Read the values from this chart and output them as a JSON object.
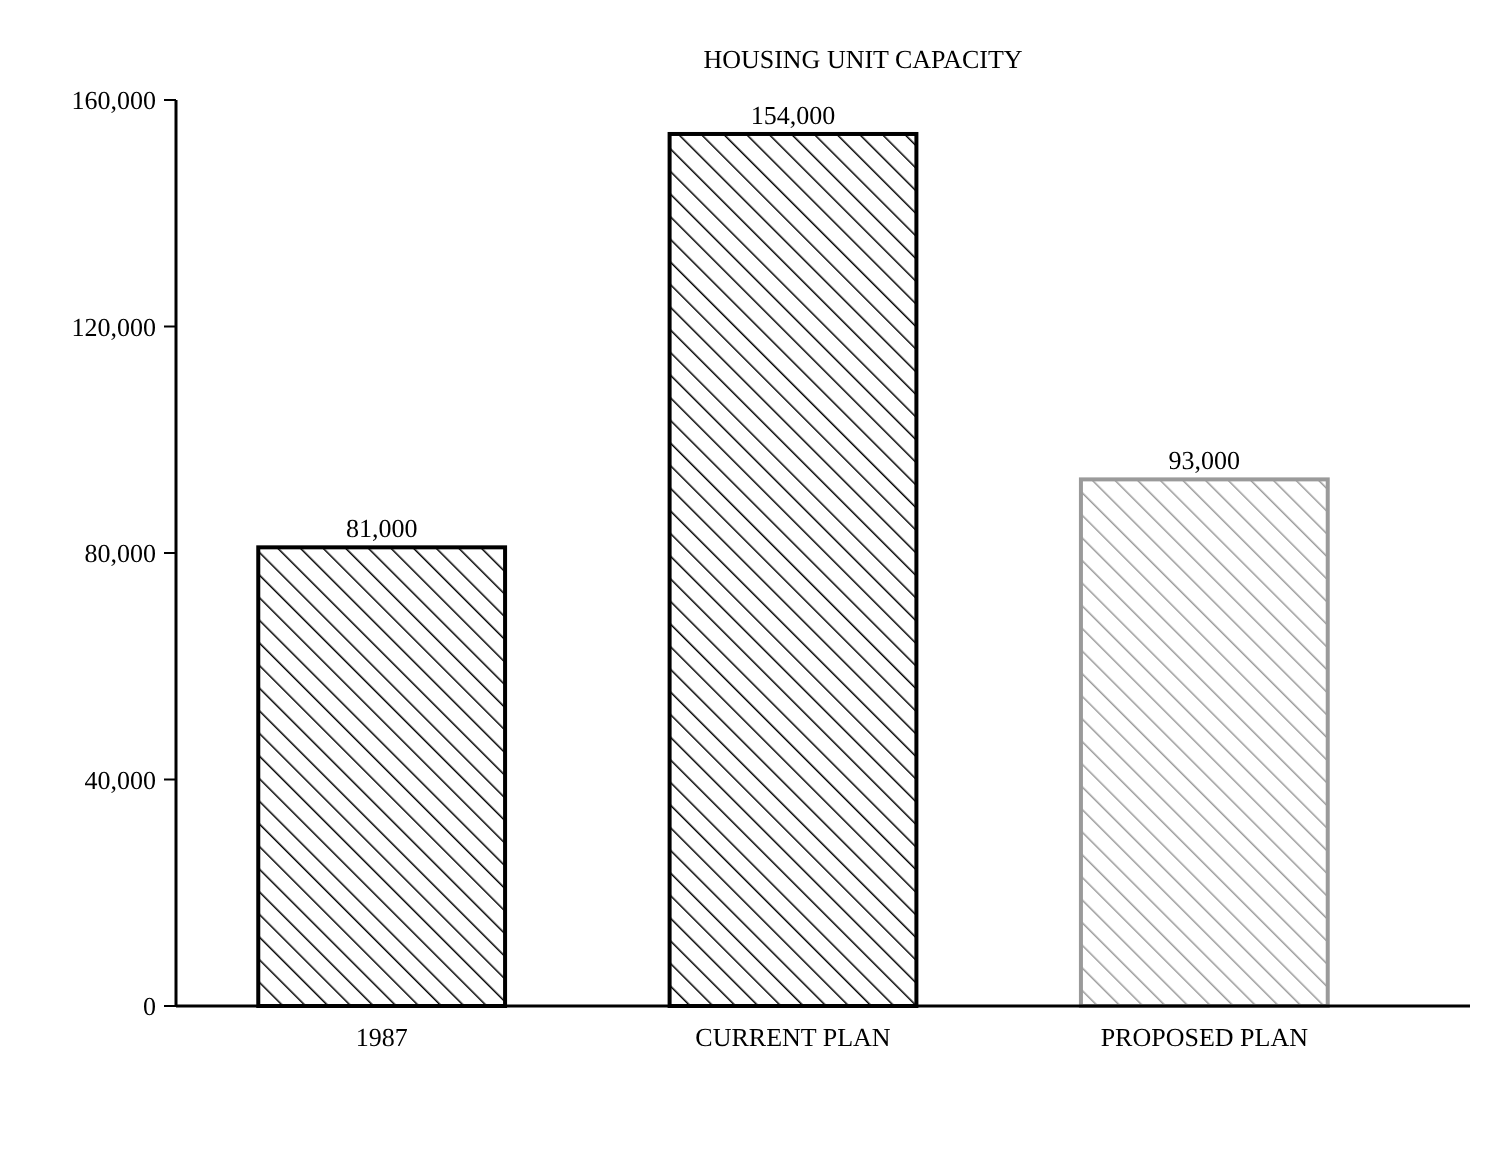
{
  "chart_data": {
    "type": "bar",
    "title": "HOUSING UNIT CAPACITY",
    "categories": [
      "1987",
      "CURRENT PLAN",
      "PROPOSED PLAN"
    ],
    "values": [
      81000,
      154000,
      93000
    ],
    "value_labels": [
      "81,000",
      "154,000",
      "93,000"
    ],
    "colors": [
      "#000000",
      "#000000",
      "#9a9a9a"
    ],
    "ylim": [
      0,
      160000
    ],
    "yticks": [
      {
        "value": 0,
        "label": "0"
      },
      {
        "value": 40000,
        "label": "40,000"
      },
      {
        "value": 80000,
        "label": "80,000"
      },
      {
        "value": 120000,
        "label": "120,000"
      },
      {
        "value": 160000,
        "label": "160,000"
      }
    ]
  }
}
